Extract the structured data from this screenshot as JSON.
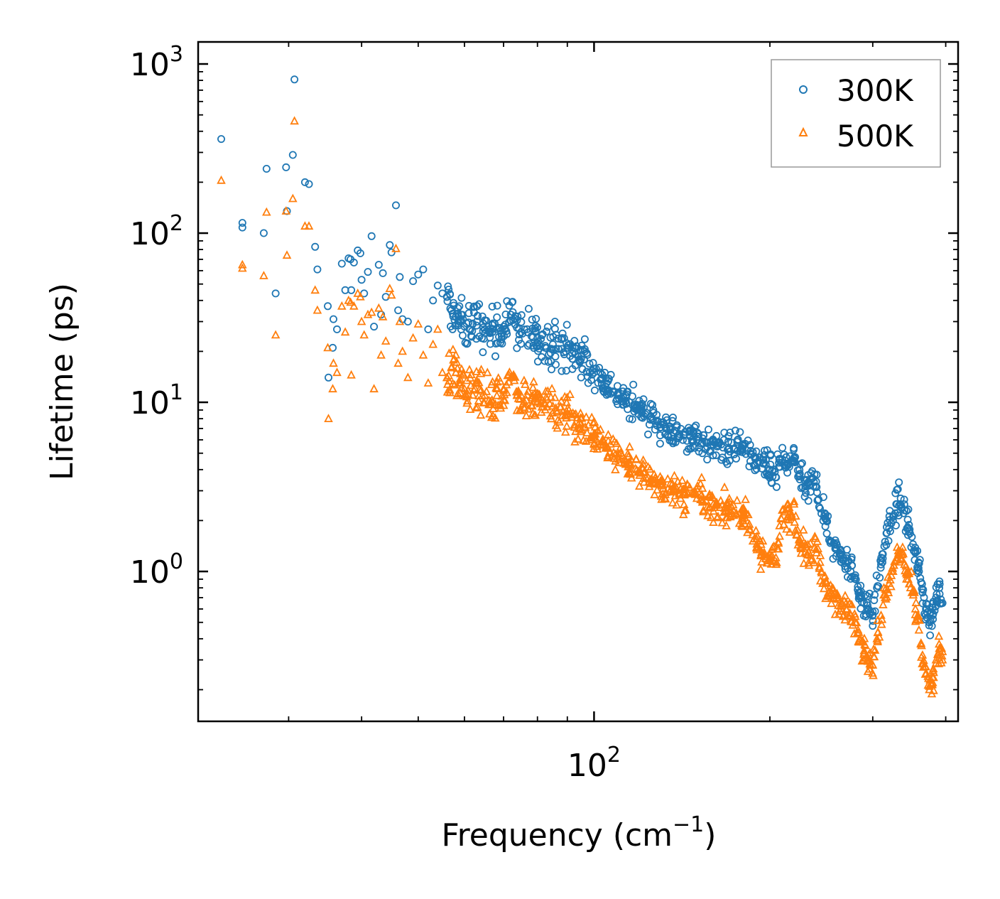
{
  "chart_data": {
    "type": "scatter",
    "title": "",
    "xlabel": "Frequency (cm",
    "xlabel_sup": "−1",
    "xlabel_close": ")",
    "ylabel": "Lifetime (ps)",
    "xscale": "log",
    "yscale": "log",
    "xlim": [
      21,
      420
    ],
    "ylim": [
      0.13,
      1350
    ],
    "x_major_ticks": [
      {
        "value": 100,
        "base": "10",
        "exp": "2"
      }
    ],
    "y_major_ticks": [
      {
        "value": 1,
        "base": "10",
        "exp": "0"
      },
      {
        "value": 10,
        "base": "10",
        "exp": "1"
      },
      {
        "value": 100,
        "base": "10",
        "exp": "2"
      },
      {
        "value": 1000,
        "base": "10",
        "exp": "3"
      }
    ],
    "legend_position": "top-right",
    "series": [
      {
        "name": "300K",
        "marker": "circle",
        "color": "#1f77b4",
        "points": [
          [
            23,
            360
          ],
          [
            25,
            115
          ],
          [
            25,
            108
          ],
          [
            27.2,
            100
          ],
          [
            27.5,
            240
          ],
          [
            28.5,
            44
          ],
          [
            29.7,
            245
          ],
          [
            29.8,
            135
          ],
          [
            30.5,
            290
          ],
          [
            30.7,
            810
          ],
          [
            32,
            200
          ],
          [
            32.5,
            195
          ],
          [
            33.3,
            83
          ],
          [
            33.6,
            61
          ],
          [
            35,
            37
          ],
          [
            35.1,
            14
          ],
          [
            35.8,
            31
          ],
          [
            35.7,
            21
          ],
          [
            36.3,
            27
          ],
          [
            37,
            66
          ],
          [
            37.5,
            46
          ],
          [
            38,
            71
          ],
          [
            38.3,
            70
          ],
          [
            38.4,
            46
          ],
          [
            38.8,
            67
          ],
          [
            39.4,
            79
          ],
          [
            39.8,
            76
          ],
          [
            40,
            53
          ],
          [
            40.4,
            44
          ],
          [
            41,
            59
          ],
          [
            41.6,
            96
          ],
          [
            42,
            28
          ],
          [
            42.8,
            65
          ],
          [
            43.2,
            33
          ],
          [
            43.5,
            58
          ],
          [
            44,
            42
          ],
          [
            44.7,
            85
          ],
          [
            45,
            77
          ],
          [
            45.8,
            146
          ],
          [
            46.2,
            35
          ],
          [
            46.5,
            55
          ],
          [
            47,
            31
          ],
          [
            48,
            30
          ],
          [
            49,
            52
          ],
          [
            50,
            57
          ],
          [
            51,
            61
          ],
          [
            52,
            27
          ],
          [
            53,
            40
          ],
          [
            54,
            49
          ],
          [
            55,
            44
          ],
          [
            56,
            42
          ],
          [
            57,
            35
          ],
          [
            58,
            32
          ],
          [
            59,
            30
          ],
          [
            60,
            28
          ],
          [
            62,
            29
          ],
          [
            63,
            30
          ],
          [
            65,
            27
          ],
          [
            67,
            26
          ],
          [
            70,
            28
          ],
          [
            72,
            33
          ],
          [
            75,
            26
          ],
          [
            80,
            24
          ],
          [
            85,
            22
          ],
          [
            90,
            21
          ],
          [
            95,
            18
          ],
          [
            100,
            15
          ],
          [
            105,
            13
          ],
          [
            110,
            11
          ],
          [
            115,
            10
          ],
          [
            120,
            9
          ],
          [
            125,
            8.2
          ],
          [
            130,
            7.4
          ],
          [
            135,
            7
          ],
          [
            140,
            6.5
          ],
          [
            150,
            6
          ],
          [
            160,
            5.6
          ],
          [
            170,
            5.3
          ],
          [
            180,
            5.5
          ],
          [
            190,
            4.4
          ],
          [
            200,
            4
          ],
          [
            205,
            3.6
          ],
          [
            210,
            4.6
          ],
          [
            215,
            4.3
          ],
          [
            220,
            4.7
          ],
          [
            225,
            3.5
          ],
          [
            230,
            3.2
          ],
          [
            240,
            3.4
          ],
          [
            245,
            2.2
          ],
          [
            250,
            2
          ],
          [
            255,
            1.5
          ],
          [
            260,
            1.35
          ],
          [
            265,
            1.3
          ],
          [
            270,
            1.2
          ],
          [
            275,
            1
          ],
          [
            280,
            0.95
          ],
          [
            285,
            0.75
          ],
          [
            290,
            0.65
          ],
          [
            295,
            0.6
          ],
          [
            300,
            0.55
          ],
          [
            305,
            0.8
          ],
          [
            310,
            1.1
          ],
          [
            315,
            1.5
          ],
          [
            320,
            1.8
          ],
          [
            325,
            2.1
          ],
          [
            330,
            2.5
          ],
          [
            335,
            2.7
          ],
          [
            340,
            2.3
          ],
          [
            345,
            1.8
          ],
          [
            350,
            1.6
          ],
          [
            355,
            1.3
          ],
          [
            360,
            1.0
          ],
          [
            365,
            0.75
          ],
          [
            370,
            0.6
          ],
          [
            375,
            0.5
          ],
          [
            380,
            0.55
          ],
          [
            385,
            0.7
          ],
          [
            390,
            0.8
          ],
          [
            395,
            0.65
          ]
        ]
      },
      {
        "name": "500K",
        "marker": "triangle",
        "color": "#ff7f0e",
        "points": [
          [
            23,
            205
          ],
          [
            25,
            65
          ],
          [
            25,
            62
          ],
          [
            27.2,
            56
          ],
          [
            27.5,
            133
          ],
          [
            28.5,
            25
          ],
          [
            29.7,
            135
          ],
          [
            29.8,
            74
          ],
          [
            30.5,
            160
          ],
          [
            30.7,
            460
          ],
          [
            32,
            110
          ],
          [
            32.5,
            110
          ],
          [
            33.3,
            46
          ],
          [
            33.6,
            35
          ],
          [
            35,
            21
          ],
          [
            35.1,
            8
          ],
          [
            35.8,
            17
          ],
          [
            35.7,
            12
          ],
          [
            36.3,
            15
          ],
          [
            37,
            37
          ],
          [
            37.5,
            26
          ],
          [
            38,
            40
          ],
          [
            38.3,
            39
          ],
          [
            38.4,
            14.5
          ],
          [
            38.8,
            37
          ],
          [
            39.4,
            44
          ],
          [
            39.8,
            42
          ],
          [
            40,
            30
          ],
          [
            40.4,
            25
          ],
          [
            41,
            33
          ],
          [
            41.6,
            34
          ],
          [
            42,
            12
          ],
          [
            42.8,
            36
          ],
          [
            43.2,
            19
          ],
          [
            43.5,
            32
          ],
          [
            44,
            23
          ],
          [
            44.7,
            47
          ],
          [
            45,
            43
          ],
          [
            45.8,
            81
          ],
          [
            46.2,
            17
          ],
          [
            46.5,
            30
          ],
          [
            47,
            20
          ],
          [
            48,
            14
          ],
          [
            49,
            24
          ],
          [
            50,
            29
          ],
          [
            51,
            19
          ],
          [
            52,
            13
          ],
          [
            53,
            22
          ],
          [
            54,
            27
          ],
          [
            55,
            15
          ],
          [
            56,
            14
          ],
          [
            57,
            16
          ],
          [
            58,
            15
          ],
          [
            59,
            13
          ],
          [
            60,
            12
          ],
          [
            62,
            11
          ],
          [
            63,
            13
          ],
          [
            65,
            11
          ],
          [
            67,
            10
          ],
          [
            70,
            12
          ],
          [
            72,
            14
          ],
          [
            75,
            11
          ],
          [
            80,
            10
          ],
          [
            85,
            9.5
          ],
          [
            90,
            8.5
          ],
          [
            95,
            7.5
          ],
          [
            100,
            6.5
          ],
          [
            105,
            5.5
          ],
          [
            110,
            4.8
          ],
          [
            115,
            4.3
          ],
          [
            120,
            3.9
          ],
          [
            125,
            3.5
          ],
          [
            130,
            3.3
          ],
          [
            135,
            3
          ],
          [
            140,
            2.9
          ],
          [
            150,
            2.7
          ],
          [
            160,
            2.5
          ],
          [
            170,
            2.3
          ],
          [
            180,
            2.2
          ],
          [
            190,
            1.4
          ],
          [
            200,
            1.2
          ],
          [
            205,
            1.1
          ],
          [
            210,
            2.3
          ],
          [
            215,
            2.1
          ],
          [
            220,
            2.5
          ],
          [
            225,
            1.5
          ],
          [
            230,
            1.3
          ],
          [
            240,
            1.35
          ],
          [
            245,
            1.0
          ],
          [
            250,
            0.85
          ],
          [
            255,
            0.75
          ],
          [
            260,
            0.7
          ],
          [
            265,
            0.65
          ],
          [
            270,
            0.6
          ],
          [
            275,
            0.55
          ],
          [
            280,
            0.5
          ],
          [
            285,
            0.4
          ],
          [
            290,
            0.33
          ],
          [
            295,
            0.3
          ],
          [
            300,
            0.28
          ],
          [
            305,
            0.4
          ],
          [
            310,
            0.55
          ],
          [
            315,
            0.7
          ],
          [
            320,
            0.85
          ],
          [
            325,
            1.0
          ],
          [
            330,
            1.2
          ],
          [
            335,
            1.3
          ],
          [
            340,
            1.1
          ],
          [
            345,
            0.9
          ],
          [
            350,
            0.75
          ],
          [
            355,
            0.6
          ],
          [
            360,
            0.45
          ],
          [
            365,
            0.32
          ],
          [
            370,
            0.25
          ],
          [
            375,
            0.2
          ],
          [
            380,
            0.22
          ],
          [
            385,
            0.3
          ],
          [
            390,
            0.35
          ],
          [
            395,
            0.3
          ]
        ]
      }
    ]
  }
}
